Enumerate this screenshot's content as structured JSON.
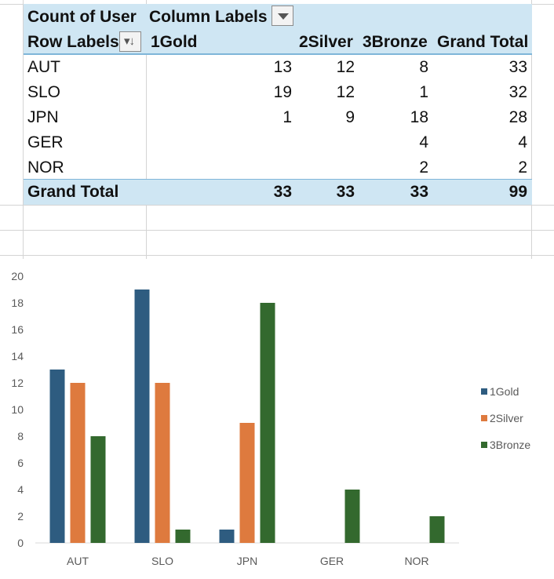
{
  "pivot": {
    "corner_label": "Count of User",
    "column_labels": "Column Labels",
    "row_labels": "Row Labels",
    "col_headers": [
      "1Gold",
      "2Silver",
      "3Bronze",
      "Grand Total"
    ],
    "rows": [
      {
        "label": "AUT",
        "values": [
          "13",
          "12",
          "8",
          "33"
        ]
      },
      {
        "label": "SLO",
        "values": [
          "19",
          "12",
          "1",
          "32"
        ]
      },
      {
        "label": "JPN",
        "values": [
          "1",
          "9",
          "18",
          "28"
        ]
      },
      {
        "label": "GER",
        "values": [
          "",
          "",
          "4",
          "4"
        ]
      },
      {
        "label": "NOR",
        "values": [
          "",
          "",
          "2",
          "2"
        ]
      }
    ],
    "total": {
      "label": "Grand Total",
      "values": [
        "33",
        "33",
        "33",
        "99"
      ]
    }
  },
  "chart_data": {
    "type": "bar",
    "categories": [
      "AUT",
      "SLO",
      "JPN",
      "GER",
      "NOR"
    ],
    "series": [
      {
        "name": "1Gold",
        "color": "#2e5c80",
        "values": [
          13,
          19,
          1,
          0,
          0
        ]
      },
      {
        "name": "2Silver",
        "color": "#de7a3e",
        "values": [
          12,
          12,
          9,
          0,
          0
        ]
      },
      {
        "name": "3Bronze",
        "color": "#33692e",
        "values": [
          8,
          1,
          18,
          4,
          2
        ]
      }
    ],
    "ylim": [
      0,
      20
    ],
    "yticks": [
      0,
      2,
      4,
      6,
      8,
      10,
      12,
      14,
      16,
      18,
      20
    ],
    "grid": false,
    "legend_position": "right"
  }
}
